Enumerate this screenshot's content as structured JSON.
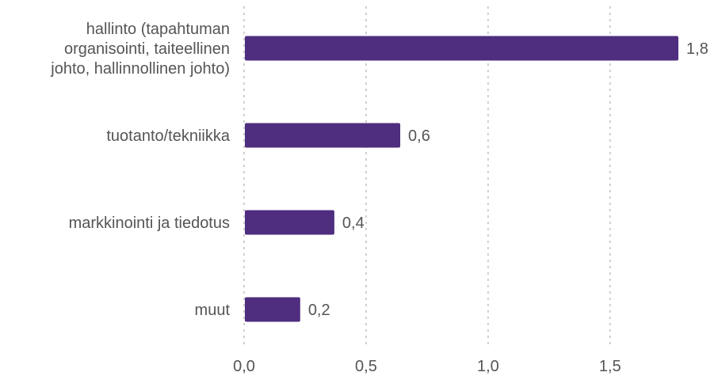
{
  "chart_data": {
    "type": "bar",
    "orientation": "horizontal",
    "categories": [
      [
        "hallinto (tapahtuman",
        "organisointi, taiteellinen",
        "johto, hallinnollinen johto)"
      ],
      [
        "tuotanto/tekniikka"
      ],
      [
        "markkinointi ja tiedotus"
      ],
      [
        "muut"
      ]
    ],
    "values": [
      1.78,
      0.64,
      0.37,
      0.23
    ],
    "value_labels": [
      "1,8",
      "0,6",
      "0,4",
      "0,2"
    ],
    "xlim": [
      0,
      1.9
    ],
    "xticks": [
      0,
      0.5,
      1.0,
      1.5
    ],
    "xtick_labels": [
      "0,0",
      "0,5",
      "1,0",
      "1,5"
    ],
    "bar_color": "#4f2d7f",
    "grid": true,
    "legend": false
  }
}
